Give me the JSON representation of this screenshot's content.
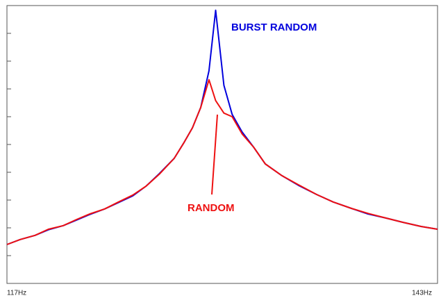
{
  "chart_data": {
    "type": "line",
    "x": [
      117.0,
      117.8,
      118.7,
      119.5,
      120.4,
      121.2,
      122.0,
      122.9,
      123.7,
      124.6,
      125.4,
      126.2,
      127.1,
      127.7,
      128.2,
      128.7,
      129.2,
      129.6,
      130.1,
      130.6,
      131.2,
      131.9,
      132.6,
      133.6,
      134.6,
      135.7,
      136.7,
      137.8,
      138.8,
      139.9,
      140.9,
      142.0,
      143.0
    ],
    "series": [
      {
        "name": "BURST RANDOM",
        "color": "#0000dd",
        "values": [
          1.4,
          1.58,
          1.73,
          1.93,
          2.08,
          2.28,
          2.48,
          2.68,
          2.9,
          3.15,
          3.5,
          3.95,
          4.5,
          5.08,
          5.6,
          6.33,
          7.65,
          9.83,
          7.13,
          6.08,
          5.45,
          4.9,
          4.3,
          3.88,
          3.53,
          3.2,
          2.93,
          2.7,
          2.5,
          2.35,
          2.2,
          2.05,
          1.95
        ]
      },
      {
        "name": "RANDOM",
        "color": "#ee1111",
        "values": [
          1.4,
          1.58,
          1.73,
          1.95,
          2.08,
          2.3,
          2.5,
          2.68,
          2.92,
          3.18,
          3.5,
          3.93,
          4.5,
          5.08,
          5.6,
          6.33,
          7.33,
          6.58,
          6.13,
          6.0,
          5.38,
          4.9,
          4.3,
          3.88,
          3.55,
          3.2,
          2.93,
          2.7,
          2.52,
          2.35,
          2.2,
          2.05,
          1.95
        ]
      }
    ],
    "xlim": [
      117,
      143
    ],
    "xticks": [
      {
        "value": 117,
        "label": "117Hz"
      },
      {
        "value": 143,
        "label": "143Hz"
      }
    ],
    "ylim": [
      0,
      10
    ],
    "yticks": [
      1,
      2,
      3,
      4,
      5,
      6,
      7,
      8,
      9
    ]
  }
}
